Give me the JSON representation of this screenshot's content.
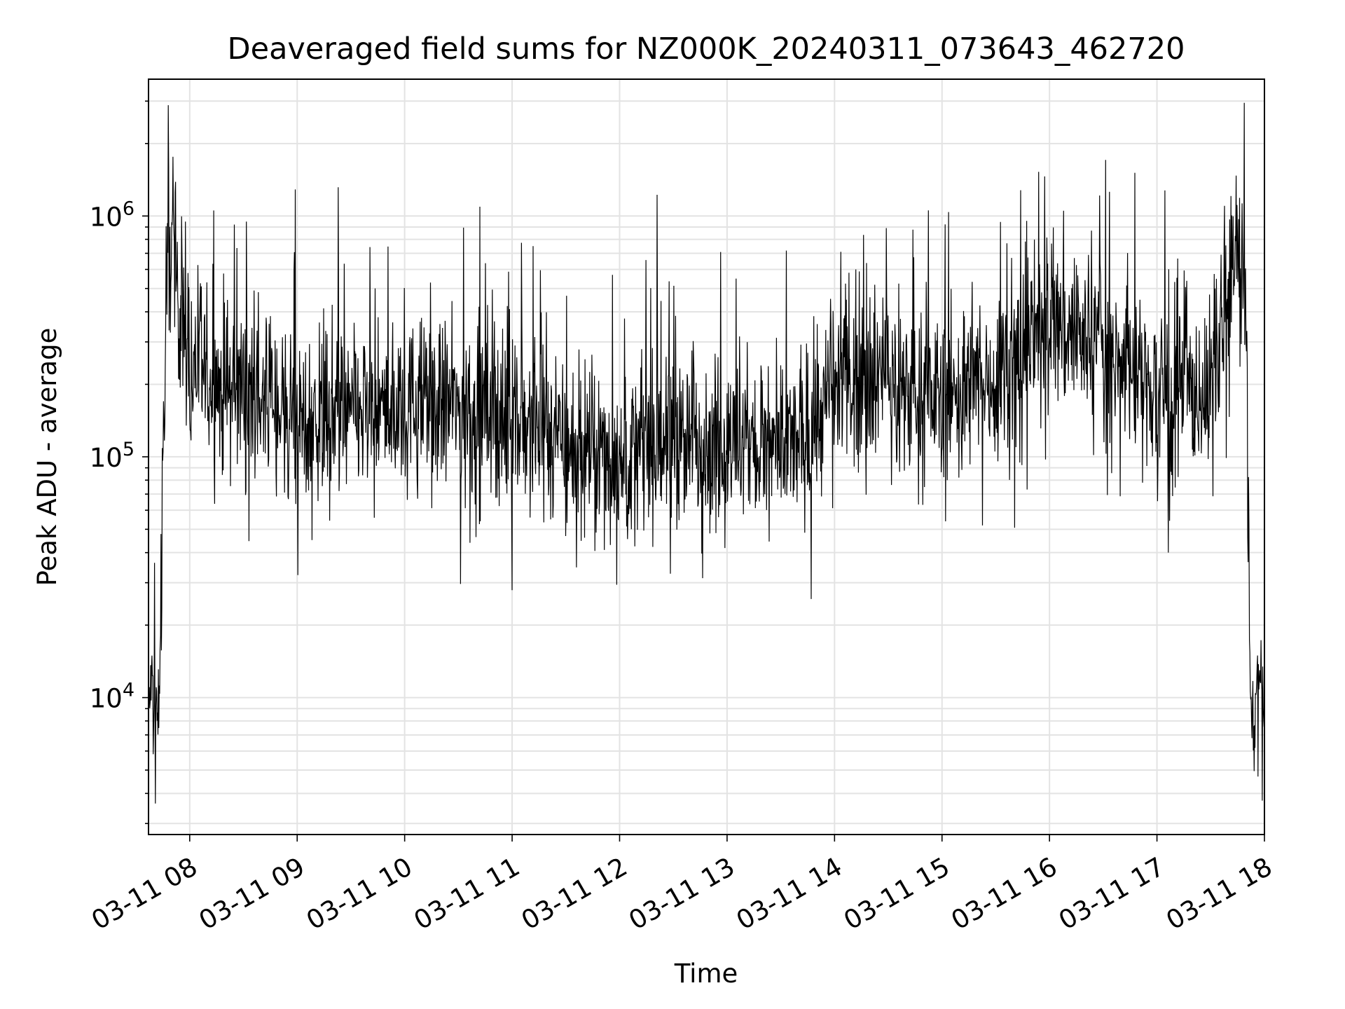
{
  "chart_data": {
    "type": "line",
    "title": "Deaveraged field sums for NZ000K_20240311_073643_462720",
    "xlabel": "Time",
    "ylabel": "Peak ADU - average",
    "yscale": "log",
    "grid": "on (major and minor)",
    "line_color": "#000000",
    "xlim": [
      "03-11 07:37",
      "03-11 18:00"
    ],
    "ylim": [
      2700,
      3700000
    ],
    "x_ticks": [
      "03-11 08",
      "03-11 09",
      "03-11 10",
      "03-11 11",
      "03-11 12",
      "03-11 13",
      "03-11 14",
      "03-11 15",
      "03-11 16",
      "03-11 17",
      "03-11 18"
    ],
    "y_ticks": [
      {
        "base": "10",
        "exp": "4",
        "value": 10000
      },
      {
        "base": "10",
        "exp": "5",
        "value": 100000
      },
      {
        "base": "10",
        "exp": "6",
        "value": 1000000
      }
    ],
    "series": [
      {
        "x": [
          "03-11 07:37",
          "03-11 07:39",
          "03-11 07:41",
          "03-11 07:43",
          "03-11 07:45",
          "03-11 07:48",
          "03-11 07:50",
          "03-11 07:55",
          "03-11 08:00",
          "03-11 08:10",
          "03-11 08:20",
          "03-11 08:30",
          "03-11 08:45",
          "03-11 09:00",
          "03-11 09:15",
          "03-11 09:30",
          "03-11 09:45",
          "03-11 10:00",
          "03-11 10:15",
          "03-11 10:30",
          "03-11 10:45",
          "03-11 11:00",
          "03-11 11:15",
          "03-11 11:30",
          "03-11 11:45",
          "03-11 12:00",
          "03-11 12:15",
          "03-11 12:30",
          "03-11 12:45",
          "03-11 13:00",
          "03-11 13:15",
          "03-11 13:30",
          "03-11 13:45",
          "03-11 14:00",
          "03-11 14:15",
          "03-11 14:30",
          "03-11 14:45",
          "03-11 15:00",
          "03-11 15:15",
          "03-11 15:30",
          "03-11 15:45",
          "03-11 16:00",
          "03-11 16:15",
          "03-11 16:30",
          "03-11 16:45",
          "03-11 17:00",
          "03-11 17:15",
          "03-11 17:30",
          "03-11 17:40",
          "03-11 17:45",
          "03-11 17:48",
          "03-11 17:50",
          "03-11 17:51",
          "03-11 17:52",
          "03-11 17:54",
          "03-11 17:56",
          "03-11 17:58",
          "03-11 18:00"
        ],
        "y": [
          9000,
          12000,
          8000,
          10000,
          90000,
          700000,
          800000,
          400000,
          260000,
          210000,
          190000,
          200000,
          170000,
          150000,
          150000,
          150000,
          150000,
          160000,
          170000,
          160000,
          150000,
          140000,
          130000,
          110000,
          100000,
          100000,
          105000,
          120000,
          115000,
          110000,
          110000,
          105000,
          120000,
          190000,
          230000,
          210000,
          180000,
          180000,
          190000,
          220000,
          280000,
          360000,
          330000,
          270000,
          240000,
          180000,
          180000,
          190000,
          450000,
          700000,
          500000,
          300000,
          100000,
          9000,
          7000,
          12000,
          11000,
          9000
        ]
      }
    ]
  }
}
